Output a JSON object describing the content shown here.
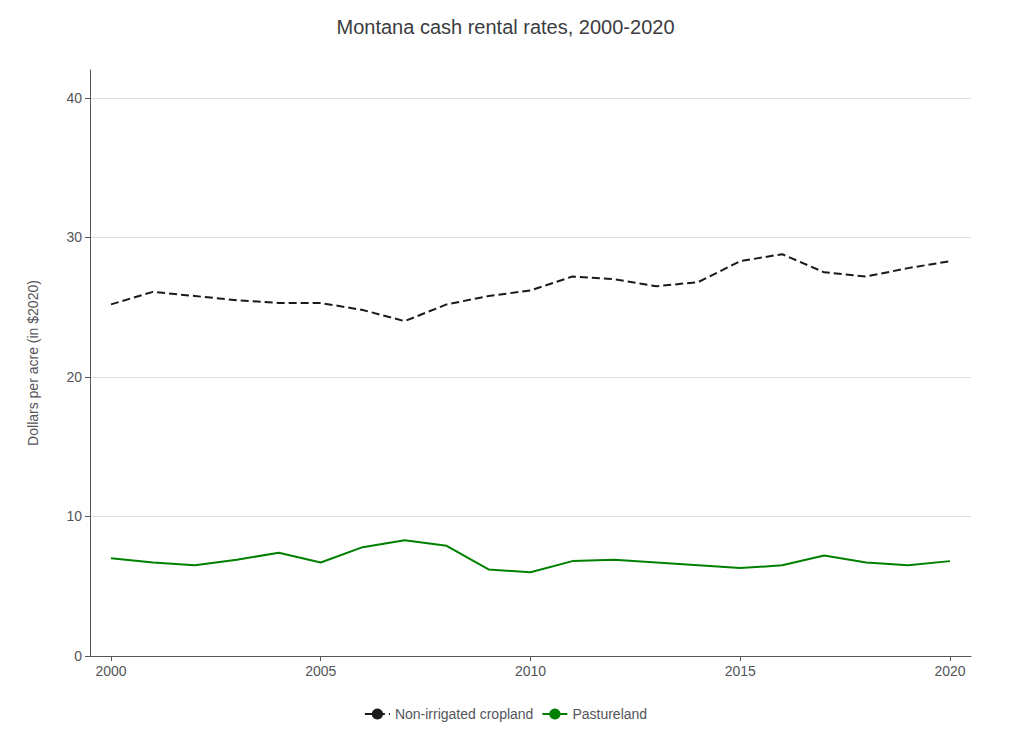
{
  "chart_data": {
    "type": "line",
    "title": "Montana cash rental rates, 2000-2020",
    "y_label": "Dollars per acre (in $2020)",
    "x": [
      2000,
      2001,
      2002,
      2003,
      2004,
      2005,
      2006,
      2007,
      2008,
      2009,
      2010,
      2011,
      2012,
      2013,
      2014,
      2015,
      2016,
      2017,
      2018,
      2019,
      2020
    ],
    "series": [
      {
        "name": "Non-irrigated cropland",
        "color": "#1a1a1a",
        "line_style": "dashed",
        "values": [
          25.2,
          26.1,
          25.8,
          25.5,
          25.3,
          25.3,
          24.8,
          24.0,
          25.2,
          25.8,
          26.2,
          27.2,
          27.0,
          26.5,
          26.8,
          28.3,
          28.8,
          27.5,
          27.2,
          27.8,
          28.3
        ]
      },
      {
        "name": "Pastureland",
        "color": "#008000",
        "line_style": "solid",
        "values": [
          7.0,
          6.7,
          6.5,
          6.9,
          7.4,
          6.7,
          7.8,
          8.3,
          7.9,
          6.2,
          6.0,
          6.8,
          6.9,
          6.7,
          6.5,
          6.3,
          6.5,
          7.2,
          6.7,
          6.5,
          6.8
        ]
      }
    ],
    "xlim": [
      1999.5,
      2020.5
    ],
    "xticks": [
      2000,
      2005,
      2010,
      2015,
      2020
    ],
    "ylim": [
      0,
      42
    ],
    "yticks": [
      0,
      10,
      20,
      30,
      40
    ],
    "grid": true,
    "legend": "bottom"
  }
}
